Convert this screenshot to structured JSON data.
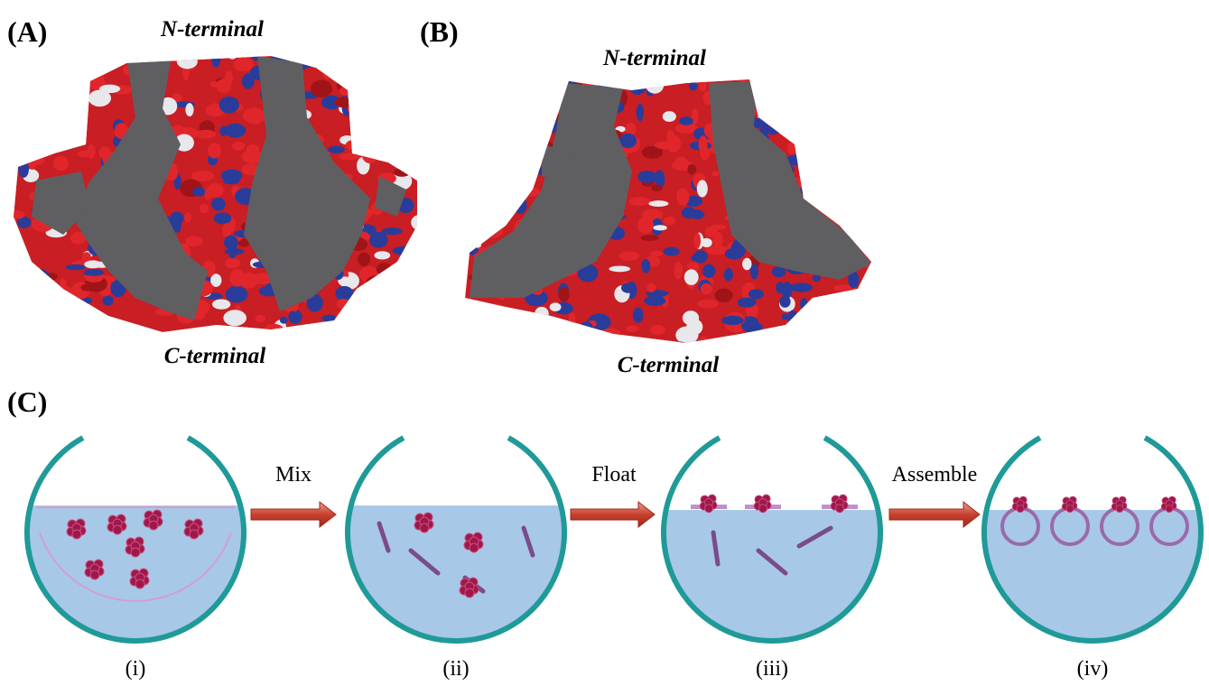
{
  "panels": [
    {
      "label": "(A)",
      "top_label": "N-terminal",
      "bottom_label": "C-terminal"
    },
    {
      "label": "(B)",
      "top_label": "N-terminal",
      "bottom_label": "C-terminal"
    }
  ],
  "scheme": {
    "label": "(C)",
    "steps": [
      {
        "label": "(i)"
      },
      {
        "label": "(ii)"
      },
      {
        "label": "(iii)"
      },
      {
        "label": "(iv)"
      }
    ],
    "arrows": [
      {
        "label": "Mix"
      },
      {
        "label": "Float"
      },
      {
        "label": "Assemble"
      }
    ]
  }
}
